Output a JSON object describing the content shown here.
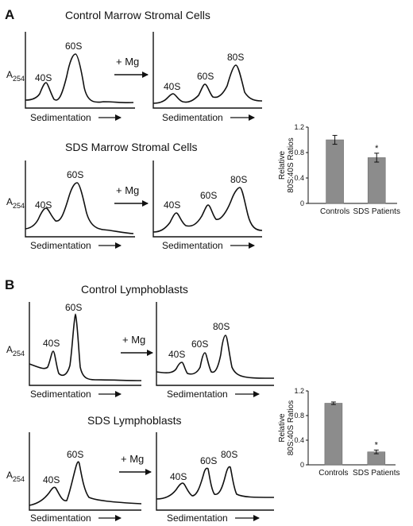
{
  "panels": [
    {
      "letter": "A",
      "rows": [
        {
          "title": "Control Marrow Stromal Cells",
          "left": {
            "peaks": [
              "40S",
              "60S"
            ]
          },
          "right": {
            "peaks": [
              "40S",
              "60S",
              "80S"
            ]
          }
        },
        {
          "title": "SDS Marrow  Stromal Cells",
          "left": {
            "peaks": [
              "40S",
              "60S"
            ]
          },
          "right": {
            "peaks": [
              "40S",
              "60S",
              "80S"
            ]
          }
        }
      ]
    },
    {
      "letter": "B",
      "rows": [
        {
          "title": "Control Lymphoblasts",
          "left": {
            "peaks": [
              "40S",
              "60S"
            ]
          },
          "right": {
            "peaks": [
              "40S",
              "60S",
              "80S"
            ]
          }
        },
        {
          "title": "SDS Lymphoblasts",
          "left": {
            "peaks": [
              "40S",
              "60S"
            ]
          },
          "right": {
            "peaks": [
              "40S",
              "60S",
              "80S"
            ]
          }
        }
      ]
    }
  ],
  "labels": {
    "absorbance_main": "A",
    "absorbance_sub": "254",
    "sedimentation": "Sedimentation",
    "mg": "+ Mg"
  },
  "chart_data": [
    {
      "type": "bar",
      "panel": "A",
      "categories": [
        "Controls",
        "SDS Patients"
      ],
      "values": [
        1.0,
        0.72
      ],
      "errors": [
        0.07,
        0.07
      ],
      "significance": [
        "",
        "*"
      ],
      "ylabel_lines": [
        "Relative",
        "80S:40S Ratios"
      ],
      "ylim": [
        0,
        1.2
      ],
      "yticks": [
        "0",
        "0.4",
        "0.8",
        "1.2"
      ],
      "bar_color": "#8c8c8c",
      "grid": false
    },
    {
      "type": "bar",
      "panel": "B",
      "categories": [
        "Controls",
        "SDS Patients"
      ],
      "values": [
        1.0,
        0.21
      ],
      "errors": [
        0.02,
        0.03
      ],
      "significance": [
        "",
        "*"
      ],
      "ylabel_lines": [
        "Relative",
        "80S:40S Ratios"
      ],
      "ylim": [
        0,
        1.2
      ],
      "yticks": [
        "0",
        "0.4",
        "0.8",
        "1.2"
      ],
      "bar_color": "#8c8c8c",
      "grid": false
    }
  ]
}
